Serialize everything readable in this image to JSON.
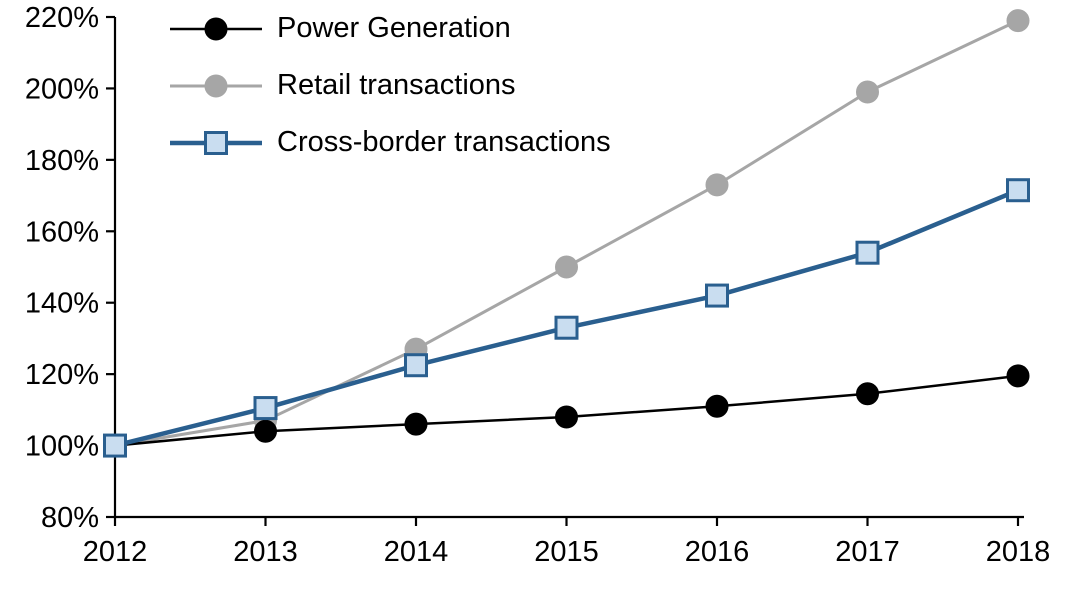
{
  "chart_data": {
    "type": "line",
    "title": "",
    "xlabel": "",
    "ylabel": "",
    "x": [
      2012,
      2013,
      2014,
      2015,
      2016,
      2017,
      2018
    ],
    "x_tick_labels": [
      "2012",
      "2013",
      "2014",
      "2015",
      "2016",
      "2017",
      "2018"
    ],
    "ylim": [
      80,
      220
    ],
    "y_tick_step": 20,
    "y_tick_labels": [
      "80%",
      "100%",
      "120%",
      "140%",
      "160%",
      "180%",
      "200%",
      "220%"
    ],
    "grid": false,
    "legend_position": "top-left",
    "axis_color": "#000000",
    "series": [
      {
        "name": "Power Generation",
        "values": [
          100,
          104,
          106,
          108,
          111,
          114.5,
          119.5
        ],
        "color": "#000000",
        "marker": "circle",
        "marker_fill": "#000000",
        "line_width": 2.5
      },
      {
        "name": "Retail transactions",
        "values": [
          100,
          107,
          127,
          150,
          173,
          199,
          219
        ],
        "color": "#a6a6a6",
        "marker": "circle",
        "marker_fill": "#a6a6a6",
        "line_width": 3
      },
      {
        "name": "Cross-border transactions",
        "values": [
          100,
          110.5,
          122.5,
          133,
          142,
          154,
          171.5
        ],
        "color": "#2a5f8f",
        "marker": "square",
        "marker_fill": "#c9ddf0",
        "line_width": 4.5
      }
    ]
  }
}
